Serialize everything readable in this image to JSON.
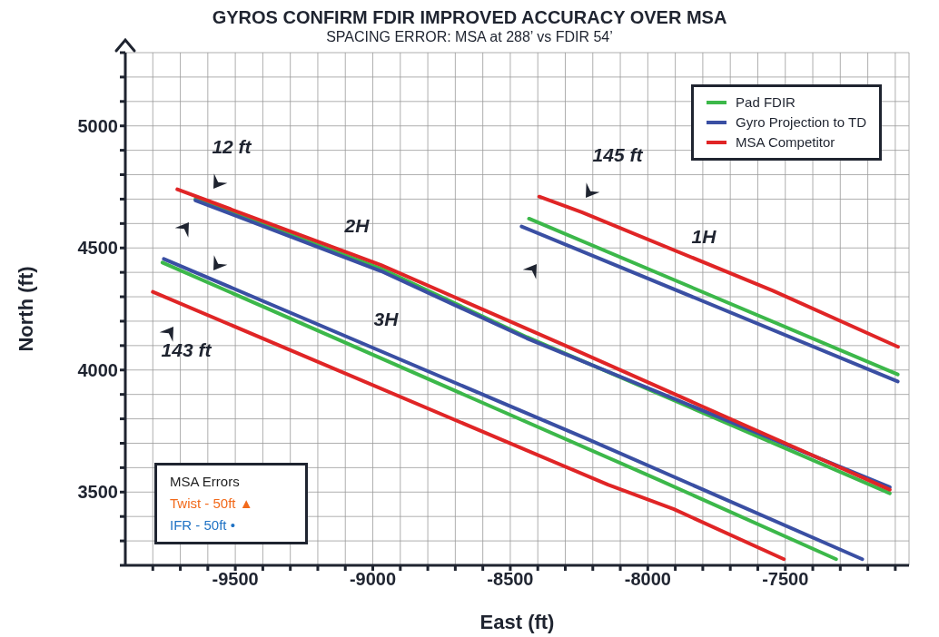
{
  "chart_data": {
    "type": "line",
    "title": "GYROS CONFIRM FDIR IMPROVED ACCURACY OVER MSA",
    "subtitle": "SPACING ERROR: MSA at 288’ vs FDIR 54’",
    "xlabel": "East (ft)",
    "ylabel": "North (ft)",
    "xlim": [
      -9900,
      -7050
    ],
    "xticks": [
      {
        "value": -9800,
        "label": null
      },
      {
        "value": -9700,
        "label": null
      },
      {
        "value": -9600,
        "label": null
      },
      -9500,
      {
        "value": -9400,
        "label": null
      },
      {
        "value": -9300,
        "label": null
      },
      {
        "value": -9200,
        "label": null
      },
      {
        "value": -9100,
        "label": null
      },
      -9000,
      {
        "value": -8900,
        "label": null
      },
      {
        "value": -8800,
        "label": null
      },
      {
        "value": -8700,
        "label": null
      },
      {
        "value": -8600,
        "label": null
      },
      -8500,
      {
        "value": -8400,
        "label": null
      },
      {
        "value": -8300,
        "label": null
      },
      {
        "value": -8200,
        "label": null
      },
      {
        "value": -8100,
        "label": null
      },
      -8000,
      {
        "value": -7900,
        "label": null
      },
      {
        "value": -7800,
        "label": null
      },
      {
        "value": -7700,
        "label": null
      },
      {
        "value": -7600,
        "label": null
      },
      -7500,
      {
        "value": -7400,
        "label": null
      },
      {
        "value": -7300,
        "label": null
      },
      {
        "value": -7200,
        "label": null
      },
      {
        "value": -7100,
        "label": null
      }
    ],
    "ylim": [
      3200,
      5300
    ],
    "yticks": [
      {
        "value": 3200,
        "label": null
      },
      {
        "value": 3300,
        "label": null
      },
      {
        "value": 3400,
        "label": null
      },
      3500,
      {
        "value": 3600,
        "label": null
      },
      {
        "value": 3700,
        "label": null
      },
      {
        "value": 3800,
        "label": null
      },
      {
        "value": 3900,
        "label": null
      },
      4000,
      {
        "value": 4100,
        "label": null
      },
      {
        "value": 4200,
        "label": null
      },
      {
        "value": 4300,
        "label": null
      },
      {
        "value": 4400,
        "label": null
      },
      4500,
      {
        "value": 4600,
        "label": null
      },
      {
        "value": 4700,
        "label": null
      },
      {
        "value": 4800,
        "label": null
      },
      {
        "value": 4900,
        "label": null
      },
      5000,
      {
        "value": 5100,
        "label": null
      },
      {
        "value": 5200,
        "label": null
      },
      {
        "value": 5300,
        "label": null
      }
    ],
    "grid": true,
    "legend": "top right",
    "line_style": "solid",
    "marker": "none",
    "series": [
      {
        "name": "Pad FDIR",
        "color": "#3cb84a",
        "x": [
          -9645,
          -8970,
          -8440,
          -7120,
          null,
          -8432,
          -7091,
          null,
          -9765,
          -7960,
          -7315
        ],
        "values": [
          4700,
          4415,
          4135,
          3495,
          null,
          4620,
          3982,
          null,
          4440,
          3550,
          3225
        ]
      },
      {
        "name": "Gyro Projection to TD",
        "color": "#3a4fa3",
        "x": [
          -9645,
          -8970,
          -8440,
          -7120,
          null,
          -8459,
          -7091,
          null,
          -9760,
          -8225,
          -7220
        ],
        "values": [
          4695,
          4405,
          4130,
          3520,
          null,
          4588,
          3953,
          null,
          4455,
          3720,
          3225
        ]
      },
      {
        "name": "MSA Competitor",
        "color": "#e02526",
        "x": [
          -9711,
          -8970,
          -8300,
          -7120,
          null,
          -8395,
          -8240,
          -7545,
          -7090,
          null,
          -9800,
          -8145,
          -7905,
          -7505
        ],
        "values": [
          4740,
          4430,
          4100,
          3510,
          null,
          4710,
          4646,
          4325,
          4095,
          null,
          4320,
          3530,
          3430,
          3225
        ]
      }
    ],
    "annotations": [
      "12 ft",
      "145 ft",
      "143 ft",
      "2H",
      "1H",
      "3H",
      "MSA Errors",
      "Twist - 50ft ▲",
      "IFR - 50ft •"
    ]
  }
}
